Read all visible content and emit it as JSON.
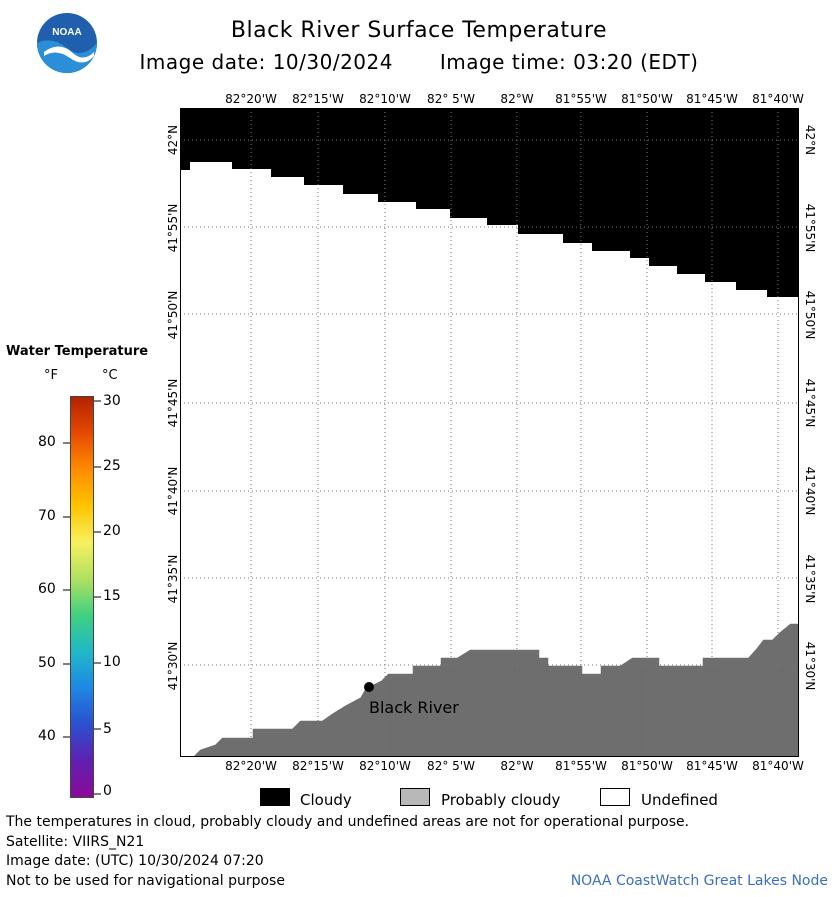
{
  "header": {
    "title": "Black River Surface Temperature",
    "image_date_label": "Image date: 10/30/2024",
    "image_time_label": "Image time: 03:20 (EDT)"
  },
  "logo": {
    "text": "NOAA",
    "icon": "noaa-logo-icon"
  },
  "map": {
    "lon_ticks": [
      "82°20'W",
      "82°15'W",
      "82°10'W",
      "82° 5'W",
      "82°W",
      "81°55'W",
      "81°50'W",
      "81°45'W",
      "81°40'W"
    ],
    "lat_ticks": [
      "42°N",
      "41°55'N",
      "41°50'N",
      "41°45'N",
      "41°40'N",
      "41°35'N",
      "41°30'N"
    ],
    "place_label": "Black River",
    "colors": {
      "cloudy": "#000000",
      "land": "#6e6e6e",
      "undefined": "#ffffff",
      "grid": "#777777"
    }
  },
  "color_scale": {
    "title": "Water Temperature",
    "unit_f": "°F",
    "unit_c": "°C",
    "fahrenheit_ticks": [
      "80",
      "70",
      "60",
      "50",
      "40"
    ],
    "celsius_ticks": [
      "30",
      "25",
      "20",
      "15",
      "10",
      "5",
      "0"
    ],
    "colors": [
      "#b22200",
      "#e64a00",
      "#ff8c00",
      "#ffc400",
      "#f7f060",
      "#b0e060",
      "#40d080",
      "#20b8c8",
      "#1e88e5",
      "#2a50d0",
      "#6020b0",
      "#8a0a9a"
    ]
  },
  "legend": {
    "cloudy": "Cloudy",
    "probably_cloudy": "Probably cloudy",
    "undefined": "Undefined",
    "colors": {
      "cloudy": "#000000",
      "probably_cloudy": "#b8b8b8",
      "undefined": "#ffffff"
    }
  },
  "footer": {
    "disclaimer": "The temperatures in cloud, probably cloudy and undefined areas are not for operational purpose.",
    "satellite": "Satellite: VIIRS_N21",
    "utc_date": "Image date: (UTC) 10/30/2024  07:20",
    "navigation": "Not to be used for navigational purpose",
    "credit": "NOAA CoastWatch Great Lakes Node"
  }
}
